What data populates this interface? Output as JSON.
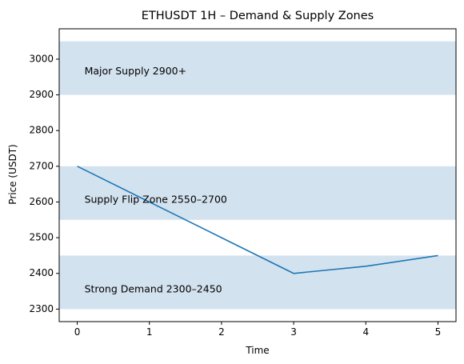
{
  "chart_data": {
    "type": "line",
    "title": "ETHUSDT 1H – Demand & Supply Zones",
    "xlabel": "Time",
    "ylabel": "Price (USDT)",
    "x": [
      0,
      1,
      2,
      3,
      4,
      5
    ],
    "xlim": [
      -0.25,
      5.25
    ],
    "ylim": [
      2265,
      3085
    ],
    "xticks": [
      0,
      1,
      2,
      3,
      4,
      5
    ],
    "yticks": [
      2300,
      2400,
      2500,
      2600,
      2700,
      2800,
      2900,
      3000
    ],
    "grid": false,
    "series": [
      {
        "values": [
          2700,
          2600,
          2500,
          2400,
          2420,
          2450
        ],
        "color": "#1f77b4"
      }
    ],
    "zones": [
      {
        "label": "Major Supply 2900+",
        "y0": 2900,
        "y1": 3050,
        "label_x": 0.1,
        "label_y": 2965,
        "color": "#d3e2ef"
      },
      {
        "label": "Supply Flip Zone 2550–2700",
        "y0": 2550,
        "y1": 2700,
        "label_x": 0.1,
        "label_y": 2605,
        "color": "#d3e2ef"
      },
      {
        "label": "Strong Demand 2300–2450",
        "y0": 2300,
        "y1": 2450,
        "label_x": 0.1,
        "label_y": 2355,
        "color": "#d3e2ef"
      }
    ]
  }
}
